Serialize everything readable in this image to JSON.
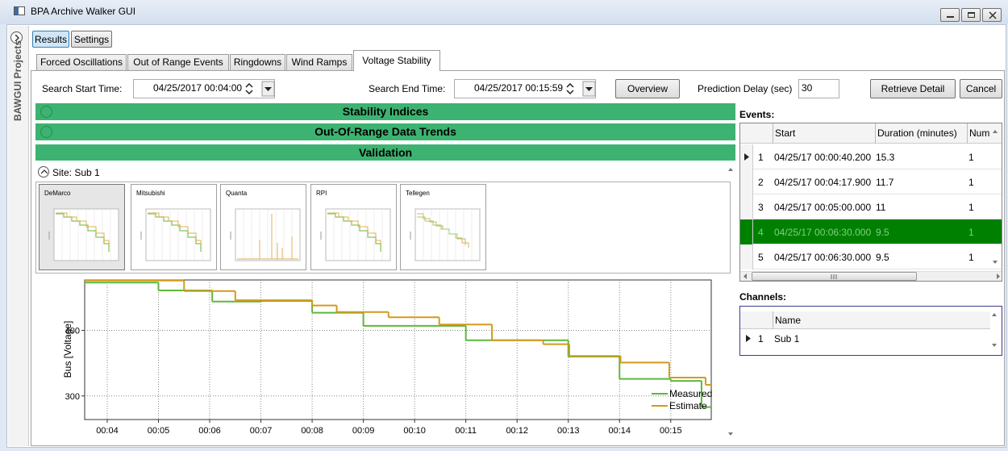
{
  "window": {
    "title": "BPA Archive Walker GUI"
  },
  "sidebar": {
    "label": "BAWGUI Projects"
  },
  "top_buttons": [
    "Results",
    "Settings"
  ],
  "tabs": [
    "Forced Oscillations",
    "Out of Range Events",
    "Ringdowns",
    "Wind Ramps",
    "Voltage Stability"
  ],
  "search": {
    "start_label": "Search Start Time:",
    "start_value": "04/25/2017 00:04:00",
    "end_label": "Search End Time:",
    "end_value": "04/25/2017 00:15:59",
    "overview": "Overview",
    "delay_label": "Prediction Delay (sec)",
    "delay_value": "30",
    "retrieve": "Retrieve Detail",
    "cancel": "Cancel"
  },
  "sections": [
    "Stability Indices",
    "Out-Of-Range Data Trends",
    "Validation"
  ],
  "site": "Site: Sub 1",
  "thumbnails": [
    "DeMarco",
    "Mitsubishi",
    "Quanta",
    "RPI",
    "Tellegen"
  ],
  "chart_data": {
    "type": "line",
    "ylabel": "Bus [Voltage]",
    "xlim": [
      3.56,
      15.79
    ],
    "xticks": [
      {
        "value": 4,
        "label": "00:04"
      },
      {
        "value": 5,
        "label": "00:05"
      },
      {
        "value": 6,
        "label": "00:06"
      },
      {
        "value": 7,
        "label": "00:07"
      },
      {
        "value": 8,
        "label": "00:08"
      },
      {
        "value": 9,
        "label": "00:09"
      },
      {
        "value": 10,
        "label": "00:10"
      },
      {
        "value": 11,
        "label": "00:11"
      },
      {
        "value": 12,
        "label": "00:12"
      },
      {
        "value": 13,
        "label": "00:13"
      },
      {
        "value": 14,
        "label": "00:14"
      },
      {
        "value": 15,
        "label": "00:15"
      }
    ],
    "ylim": [
      264,
      477
    ],
    "yticks": [
      300,
      400
    ],
    "grid": true,
    "legend": "lower right",
    "series": [
      {
        "name": "Measured",
        "color": "#5db83a",
        "x": [
          3.56,
          5.0,
          6.05,
          7.0,
          8.0,
          9.0,
          10.0,
          11.0,
          12.0,
          13.0,
          14.0,
          15.0,
          15.6
        ],
        "values": [
          473,
          461,
          444,
          445,
          427,
          407,
          407,
          385,
          385,
          360,
          326,
          323,
          283
        ]
      },
      {
        "name": "Estimate",
        "color": "#d39a1c",
        "x": [
          3.56,
          5.5,
          6.5,
          8.0,
          8.48,
          9.49,
          10.48,
          11.51,
          12.51,
          13.02,
          14.02,
          14.97,
          15.68
        ],
        "values": [
          476,
          460,
          446,
          438,
          428,
          420,
          409,
          385,
          379,
          361,
          351,
          328,
          317
        ]
      }
    ]
  },
  "events": {
    "label": "Events:",
    "columns": [
      "Start",
      "Duration (minutes)",
      "Num"
    ],
    "rows": [
      [
        "1",
        "04/25/17 00:00:40.200",
        "15.3",
        "1"
      ],
      [
        "2",
        "04/25/17 00:04:17.900",
        "11.7",
        "1"
      ],
      [
        "3",
        "04/25/17 00:05:00.000",
        "11",
        "1"
      ],
      [
        "4",
        "04/25/17 00:06:30.000",
        "9.5",
        "1"
      ],
      [
        "5",
        "04/25/17 00:06:30.000",
        "9.5",
        "1"
      ]
    ]
  },
  "channels": {
    "label": "Channels:",
    "columns": [
      "Name"
    ],
    "rows": [
      [
        "1",
        "Sub 1"
      ]
    ]
  }
}
